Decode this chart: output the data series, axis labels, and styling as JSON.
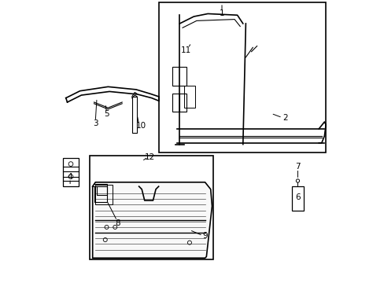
{
  "background_color": "#ffffff",
  "line_color": "#000000",
  "figsize": [
    4.89,
    3.6
  ],
  "dpi": 100
}
